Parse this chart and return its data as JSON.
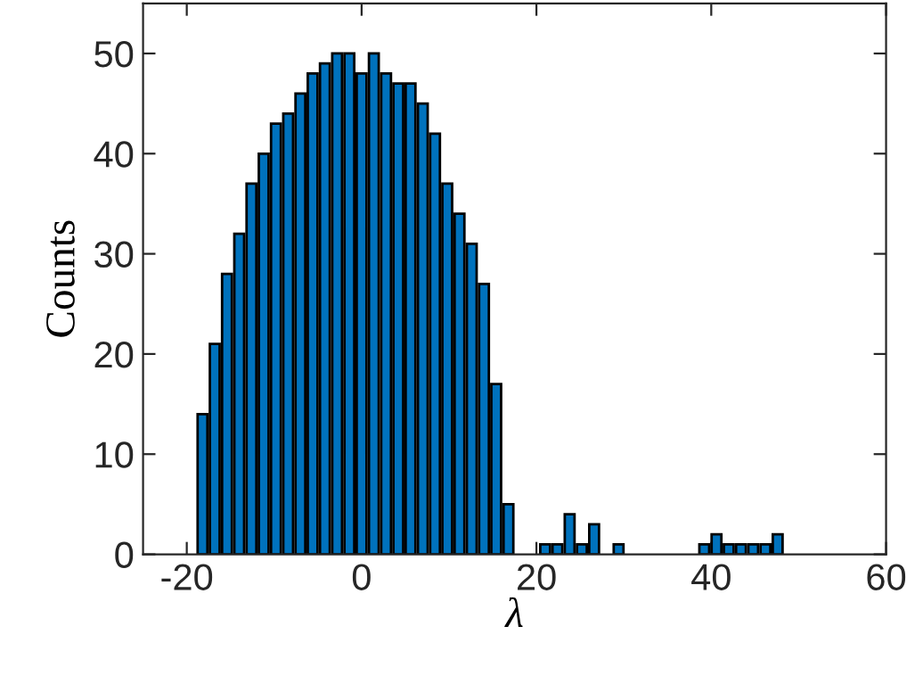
{
  "chart_data": {
    "type": "histogram",
    "xlabel": "λ",
    "ylabel": "Counts",
    "color": "#0072bd",
    "bins": [
      -18.9,
      -17.5,
      -16.1,
      -14.7,
      -13.3,
      -11.9,
      -10.5,
      -9.1,
      -7.7,
      -6.3,
      -4.9,
      -3.5,
      -2.1,
      -0.7,
      0.7,
      2.1,
      3.5,
      4.9,
      6.3,
      7.7,
      9.1,
      10.5,
      11.9,
      13.3,
      14.7,
      16.1,
      17.5,
      18.9,
      20.3,
      21.7,
      23.1,
      24.5,
      25.9,
      27.3,
      28.7,
      30.1,
      31.5,
      32.9,
      34.3,
      35.7,
      37.1,
      38.5,
      39.9,
      41.3,
      42.7,
      44.1,
      45.5,
      46.9,
      48.3
    ],
    "values": [
      14,
      21,
      28,
      32,
      37,
      40,
      43,
      44,
      46,
      48,
      49,
      50,
      50,
      48,
      50,
      48,
      47,
      47,
      45,
      42,
      37,
      34,
      31,
      27,
      17,
      5,
      0,
      0,
      1,
      1,
      4,
      1,
      3,
      0,
      1,
      0,
      0,
      0,
      0,
      0,
      0,
      1,
      2,
      1,
      1,
      1,
      1,
      2
    ],
    "xlim": [
      -25,
      60
    ],
    "xticks": [
      -20,
      0,
      20,
      40,
      60
    ],
    "ylim": [
      0,
      55
    ],
    "yticks": [
      0,
      10,
      20,
      30,
      40,
      50
    ],
    "grid": false
  }
}
